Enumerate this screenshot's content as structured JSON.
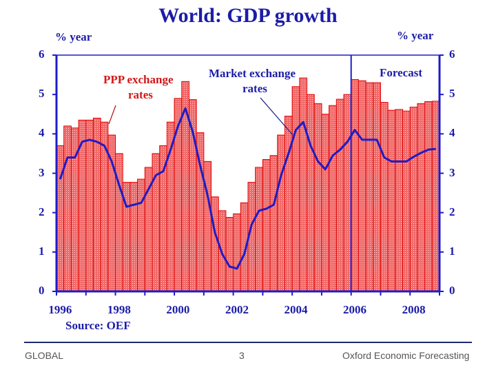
{
  "chart_data": {
    "type": "bar",
    "title": "World: GDP growth",
    "ylabel_left": "% year",
    "ylabel_right": "% year",
    "ylim": [
      0,
      6
    ],
    "yticks": [
      "0",
      "1",
      "2",
      "3",
      "4",
      "5",
      "6"
    ],
    "xtick_labels": [
      "1996",
      "1998",
      "2000",
      "2002",
      "2004",
      "2006",
      "2008"
    ],
    "frequency": "quarterly",
    "period": "1996 Q1 - 2008 Q4",
    "forecast_start": "2006",
    "forecast_label": "Forecast",
    "grid": false,
    "series": [
      {
        "name": "PPP exchange rates",
        "type": "bar",
        "color": "#e01818",
        "values": [
          3.7,
          4.2,
          4.15,
          4.35,
          4.35,
          4.4,
          4.3,
          3.97,
          3.5,
          2.77,
          2.77,
          2.85,
          3.15,
          3.5,
          3.7,
          4.3,
          4.9,
          5.33,
          4.87,
          4.03,
          3.3,
          2.4,
          2.05,
          1.88,
          1.97,
          2.25,
          2.77,
          3.15,
          3.35,
          3.45,
          3.97,
          4.45,
          5.2,
          5.42,
          5.0,
          4.77,
          4.5,
          4.72,
          4.88,
          5.0,
          5.38,
          5.35,
          5.3,
          5.3,
          4.8,
          4.6,
          4.62,
          4.58,
          4.68,
          4.77,
          4.82,
          4.83
        ]
      },
      {
        "name": "Market exchange rates",
        "type": "line",
        "color": "#1c1cc8",
        "values": [
          2.85,
          3.4,
          3.4,
          3.8,
          3.85,
          3.8,
          3.7,
          3.3,
          2.7,
          2.15,
          2.2,
          2.25,
          2.6,
          2.95,
          3.05,
          3.6,
          4.2,
          4.65,
          4.05,
          3.2,
          2.45,
          1.5,
          0.95,
          0.63,
          0.58,
          0.95,
          1.7,
          2.05,
          2.1,
          2.2,
          2.95,
          3.5,
          4.1,
          4.3,
          3.7,
          3.3,
          3.1,
          3.45,
          3.6,
          3.8,
          4.1,
          3.85,
          3.85,
          3.85,
          3.4,
          3.3,
          3.3,
          3.3,
          3.42,
          3.52,
          3.6,
          3.62
        ]
      }
    ],
    "annotations": {
      "ppp_line1": "PPP exchange",
      "ppp_line2": "rates",
      "mkt_line1": "Market exchange",
      "mkt_line2": "rates"
    },
    "source": "Source: OEF"
  },
  "footer": {
    "left": "GLOBAL",
    "page": "3",
    "right": "Oxford Economic Forecasting"
  }
}
